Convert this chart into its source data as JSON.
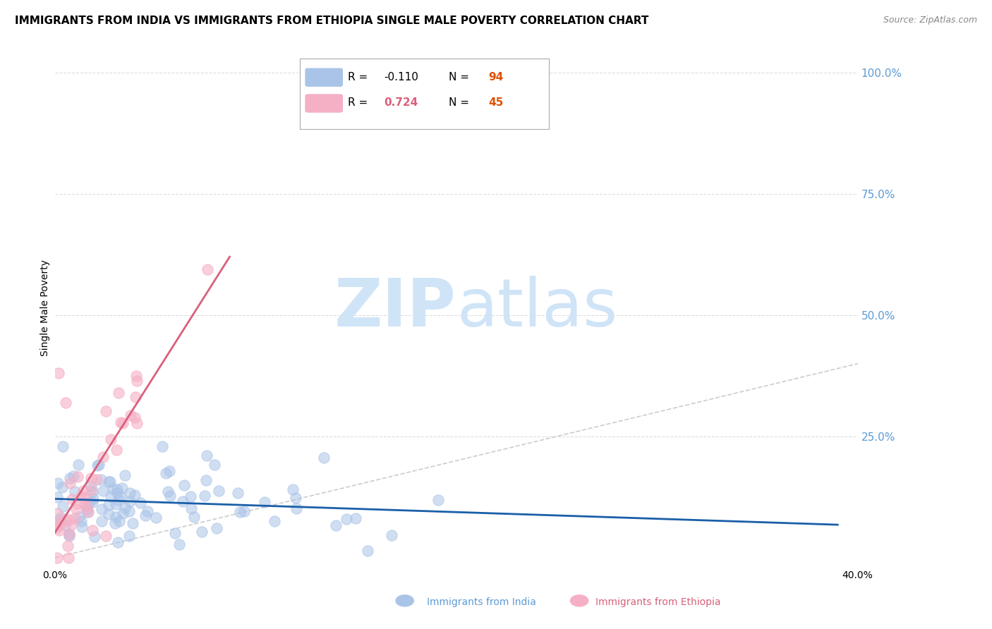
{
  "title": "IMMIGRANTS FROM INDIA VS IMMIGRANTS FROM ETHIOPIA SINGLE MALE POVERTY CORRELATION CHART",
  "source": "Source: ZipAtlas.com",
  "ylabel": "Single Male Poverty",
  "ytick_labels": [
    "100.0%",
    "75.0%",
    "50.0%",
    "25.0%"
  ],
  "ytick_values": [
    1.0,
    0.75,
    0.5,
    0.25
  ],
  "xlim": [
    0.0,
    0.4
  ],
  "ylim": [
    -0.02,
    1.05
  ],
  "india_R": -0.11,
  "india_N": 94,
  "ethiopia_R": 0.724,
  "ethiopia_N": 45,
  "india_color": "#aac4e8",
  "ethiopia_color": "#f5b0c5",
  "india_line_color": "#1a5fa8",
  "ethiopia_line_color": "#d9607a",
  "diagonal_color": "#cccccc",
  "background_color": "#ffffff",
  "grid_color": "#dddddd",
  "title_fontsize": 11,
  "watermark_color": "#d0e4f7",
  "ytick_color": "#5b9bd5",
  "legend_N_color": "#e05000",
  "source_color": "#888888"
}
